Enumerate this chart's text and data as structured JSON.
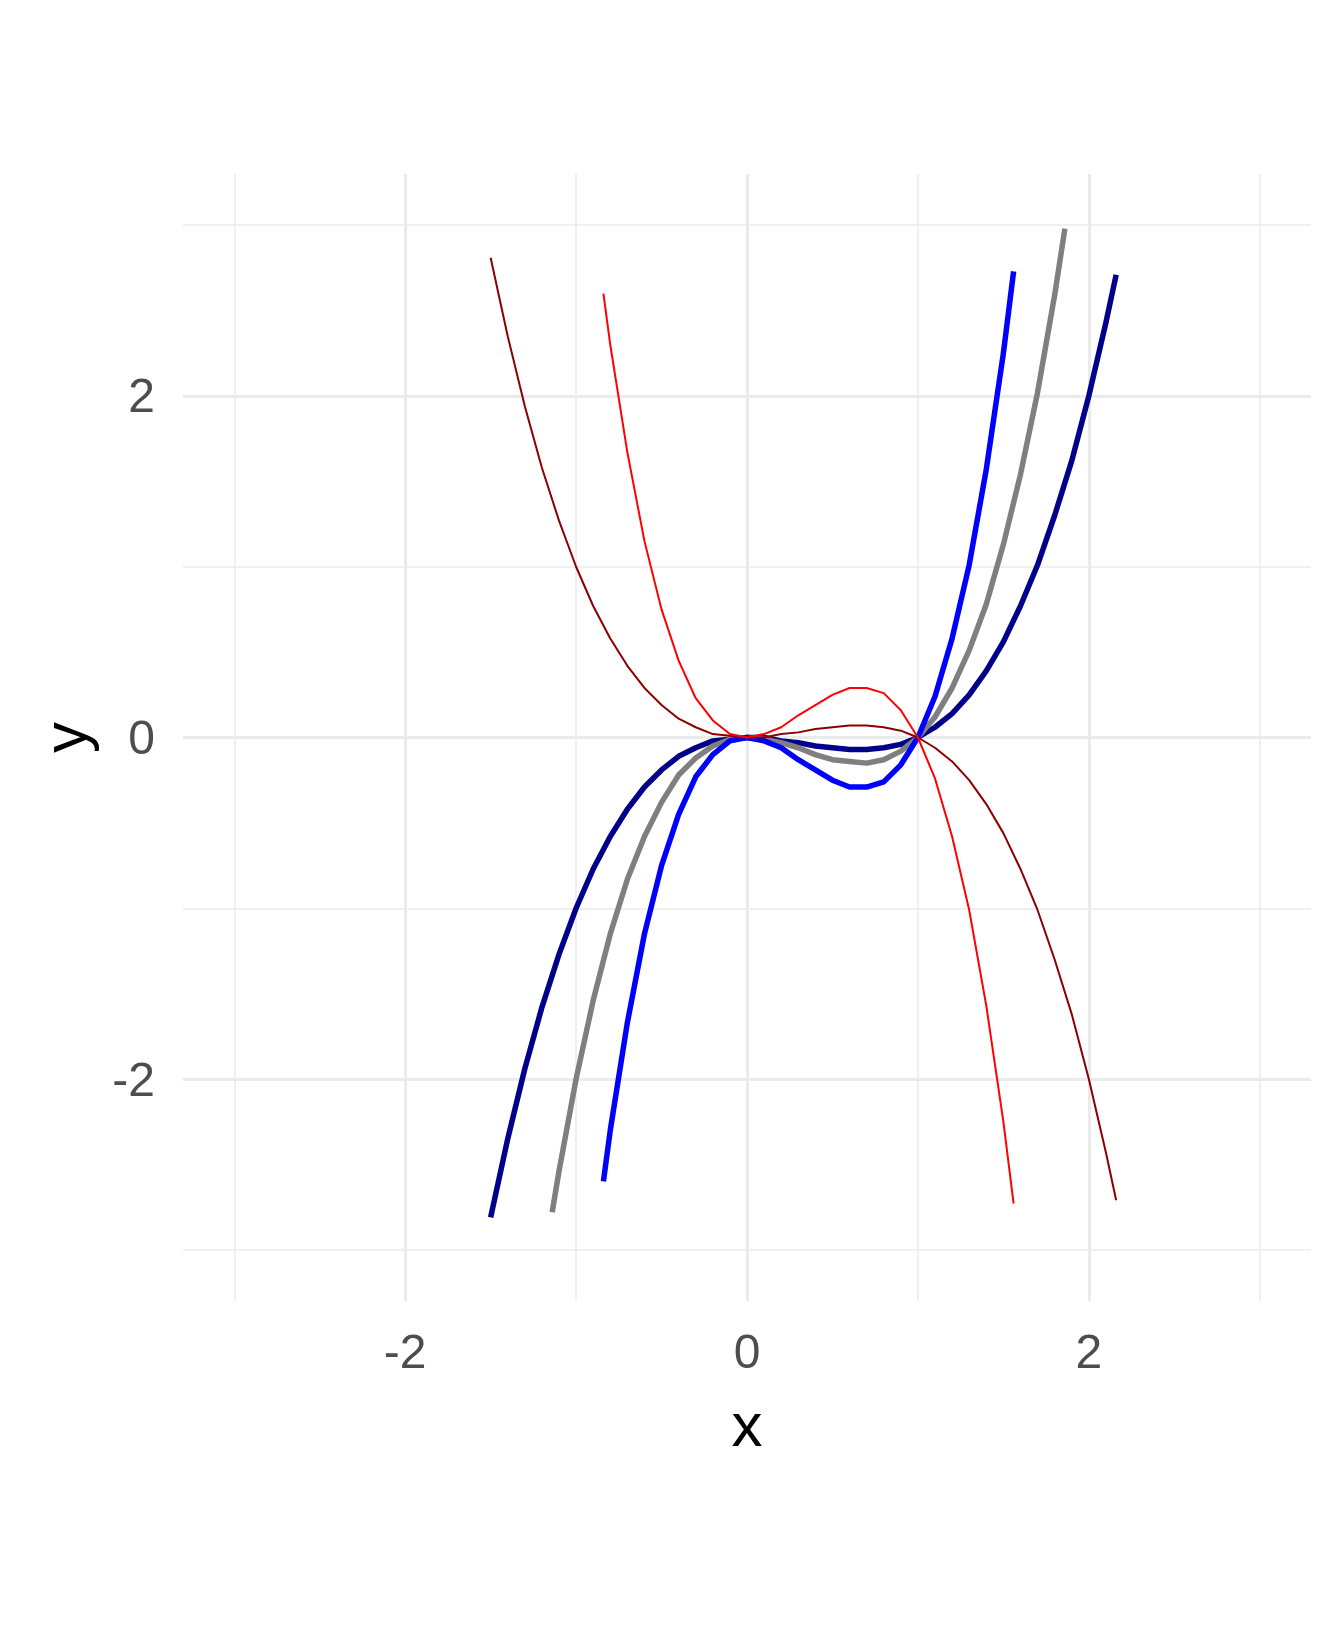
{
  "chart_data": {
    "type": "line",
    "xlabel": "x",
    "ylabel": "y",
    "xlim": [
      -3.3,
      3.3
    ],
    "ylim": [
      -3.3,
      3.3
    ],
    "xticks": [
      {
        "value": -3,
        "label": null
      },
      -2,
      {
        "value": -1,
        "label": null
      },
      0,
      {
        "value": 1,
        "label": null
      },
      2,
      {
        "value": 3,
        "label": null
      }
    ],
    "yticks": [
      {
        "value": -3,
        "label": null
      },
      -2,
      {
        "value": -1,
        "label": null
      },
      0,
      {
        "value": 1,
        "label": null
      },
      2,
      {
        "value": 3,
        "label": null
      }
    ],
    "grid": true,
    "series": [
      {
        "color": "#00008b",
        "x": [
          -1.5,
          -1.4,
          -1.3,
          -1.2,
          -1.1,
          -1.0,
          -0.9,
          -0.8,
          -0.7,
          -0.6,
          -0.5,
          -0.4,
          -0.3,
          -0.2,
          -0.1,
          0,
          0.1,
          0.2,
          0.3,
          0.4,
          0.5,
          0.6,
          0.7,
          0.8,
          0.9,
          1.0,
          1.1,
          1.2,
          1.3,
          1.4,
          1.5,
          1.6,
          1.7,
          1.8,
          1.9,
          2.0,
          2.1,
          2.16
        ],
        "values": [
          -2.81,
          -2.35,
          -1.94,
          -1.58,
          -1.27,
          -1.0,
          -0.77,
          -0.58,
          -0.42,
          -0.29,
          -0.19,
          -0.11,
          -0.06,
          -0.02,
          -0.01,
          0,
          0,
          -0.02,
          -0.03,
          -0.05,
          -0.06,
          -0.07,
          -0.07,
          -0.06,
          -0.04,
          0,
          0.06,
          0.14,
          0.25,
          0.39,
          0.56,
          0.77,
          1.01,
          1.3,
          1.62,
          2.0,
          2.43,
          2.71
        ]
      },
      {
        "color": "#7f7f7f",
        "x": [
          -1.14,
          -1.1,
          -1.0,
          -0.9,
          -0.8,
          -0.7,
          -0.6,
          -0.5,
          -0.4,
          -0.3,
          -0.2,
          -0.1,
          0,
          0.1,
          0.2,
          0.3,
          0.4,
          0.5,
          0.6,
          0.7,
          0.8,
          0.9,
          1.0,
          1.1,
          1.2,
          1.3,
          1.4,
          1.5,
          1.6,
          1.7,
          1.8,
          1.86
        ],
        "values": [
          -2.78,
          -2.54,
          -2.0,
          -1.54,
          -1.15,
          -0.83,
          -0.58,
          -0.38,
          -0.22,
          -0.12,
          -0.05,
          -0.01,
          0,
          -0.01,
          -0.03,
          -0.06,
          -0.1,
          -0.13,
          -0.14,
          -0.15,
          -0.13,
          -0.08,
          0,
          0.12,
          0.29,
          0.51,
          0.78,
          1.13,
          1.54,
          2.02,
          2.59,
          2.98
        ]
      },
      {
        "color": "#0000ff",
        "x": [
          -0.84,
          -0.8,
          -0.7,
          -0.6,
          -0.5,
          -0.4,
          -0.3,
          -0.2,
          -0.1,
          0,
          0.1,
          0.2,
          0.3,
          0.4,
          0.5,
          0.6,
          0.7,
          0.8,
          0.9,
          1.0,
          1.1,
          1.2,
          1.3,
          1.4,
          1.5,
          1.56
        ],
        "values": [
          -2.6,
          -2.3,
          -1.67,
          -1.15,
          -0.75,
          -0.45,
          -0.23,
          -0.1,
          -0.02,
          0,
          -0.02,
          -0.06,
          -0.13,
          -0.19,
          -0.25,
          -0.29,
          -0.29,
          -0.26,
          -0.16,
          0,
          0.24,
          0.58,
          1.01,
          1.57,
          2.25,
          2.73
        ]
      },
      {
        "color": "#8b0000",
        "x": [
          -1.5,
          -1.4,
          -1.3,
          -1.2,
          -1.1,
          -1.0,
          -0.9,
          -0.8,
          -0.7,
          -0.6,
          -0.5,
          -0.4,
          -0.3,
          -0.2,
          -0.1,
          0,
          0.1,
          0.2,
          0.3,
          0.4,
          0.5,
          0.6,
          0.7,
          0.8,
          0.9,
          1.0,
          1.1,
          1.2,
          1.3,
          1.4,
          1.5,
          1.6,
          1.7,
          1.8,
          1.9,
          2.0,
          2.1,
          2.16
        ],
        "values": [
          2.81,
          2.35,
          1.94,
          1.58,
          1.27,
          1.0,
          0.77,
          0.58,
          0.42,
          0.29,
          0.19,
          0.11,
          0.06,
          0.02,
          0.01,
          0,
          0,
          0.02,
          0.03,
          0.05,
          0.06,
          0.07,
          0.07,
          0.06,
          0.04,
          0,
          -0.06,
          -0.14,
          -0.25,
          -0.39,
          -0.56,
          -0.77,
          -1.01,
          -1.3,
          -1.62,
          -2.0,
          -2.43,
          -2.71
        ]
      },
      {
        "color": "#ff0000",
        "x": [
          -0.84,
          -0.8,
          -0.7,
          -0.6,
          -0.5,
          -0.4,
          -0.3,
          -0.2,
          -0.1,
          0,
          0.1,
          0.2,
          0.3,
          0.4,
          0.5,
          0.6,
          0.7,
          0.8,
          0.9,
          1.0,
          1.1,
          1.2,
          1.3,
          1.4,
          1.5,
          1.56
        ],
        "values": [
          2.6,
          2.3,
          1.67,
          1.15,
          0.75,
          0.45,
          0.23,
          0.1,
          0.02,
          0,
          0.02,
          0.06,
          0.13,
          0.19,
          0.25,
          0.29,
          0.29,
          0.26,
          0.16,
          0,
          -0.24,
          -0.58,
          -1.01,
          -1.57,
          -2.25,
          -2.73
        ]
      }
    ]
  }
}
